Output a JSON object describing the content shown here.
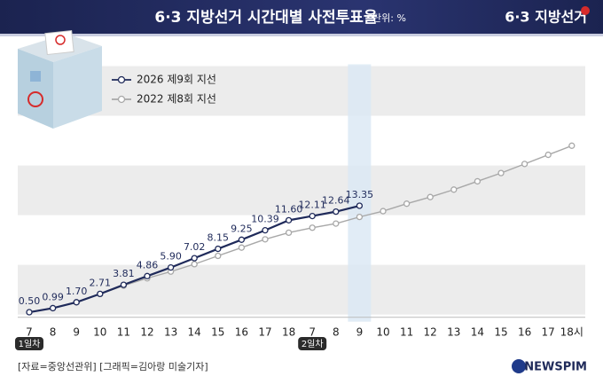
{
  "chart_data": {
    "type": "line",
    "title": "6·3 지방선거 시간대별 사전투표율",
    "unit": "단위: %",
    "logo": "6·3 지방선거",
    "categories": [
      "7",
      "8",
      "9",
      "10",
      "11",
      "12",
      "13",
      "14",
      "15",
      "16",
      "17",
      "18",
      "7",
      "8",
      "9",
      "10",
      "11",
      "12",
      "13",
      "14",
      "15",
      "16",
      "17",
      "18시"
    ],
    "day_markers": [
      {
        "category_index": 0,
        "label": "1일차"
      },
      {
        "category_index": 12,
        "label": "2일차"
      }
    ],
    "highlight_index": 14,
    "ylim": [
      0,
      30
    ],
    "series": [
      {
        "name": "2026 제9회 지선",
        "color": "#1f2a5a",
        "values": [
          0.5,
          0.99,
          1.7,
          2.71,
          3.81,
          4.86,
          5.9,
          7.02,
          8.15,
          9.25,
          10.39,
          11.6,
          12.11,
          12.64,
          13.35,
          null,
          null,
          null,
          null,
          null,
          null,
          null,
          null,
          null
        ],
        "value_labels": [
          "0.50",
          "0.99",
          "1.70",
          "2.71",
          "3.81",
          "4.86",
          "5.90",
          "7.02",
          "8.15",
          "9.25",
          "10.39",
          "11.60",
          "12.11",
          "12.64",
          "13.35",
          null,
          null,
          null,
          null,
          null,
          null,
          null,
          null,
          null
        ]
      },
      {
        "name": "2022 제8회 지선",
        "color": "#a8a8a8",
        "values": [
          0.5,
          1.0,
          1.7,
          2.7,
          3.7,
          4.6,
          5.4,
          6.3,
          7.3,
          8.3,
          9.3,
          10.1,
          10.7,
          11.2,
          12.0,
          12.7,
          13.6,
          14.4,
          15.3,
          16.3,
          17.3,
          18.4,
          19.5,
          20.6
        ]
      }
    ],
    "source": "[자료=중앙선관위] [그래픽=김아랑 미술기자]",
    "brand": "NEWSPIM"
  }
}
